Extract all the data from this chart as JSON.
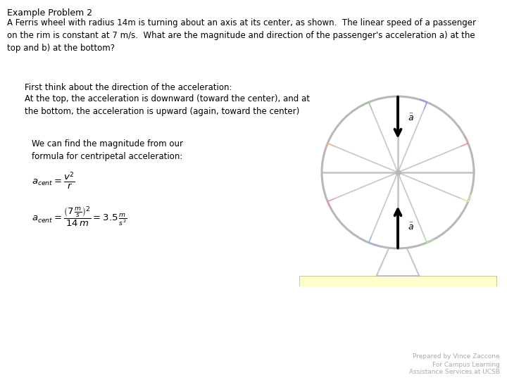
{
  "title": "Example Problem 2",
  "problem_text": "A Ferris wheel with radius 14m is turning about an axis at its center, as shown.  The linear speed of a passenger\non the rim is constant at 7 m/s.  What are the magnitude and direction of the passenger's acceleration a) at the\ntop and b) at the bottom?",
  "step1_text": "First think about the direction of the acceleration:",
  "step2_text": "At the top, the acceleration is downward (toward the center), and at\nthe bottom, the acceleration is upward (again, toward the center)",
  "step3_text": "We can find the magnitude from our\nformula for centripetal acceleration:",
  "footer1": "Prepared by Vince Zaccone",
  "footer2": "For Campus Learning\nAssistance Services at UCSB",
  "bg_color": "#ffffff",
  "wheel_color": "#b8b8b8",
  "spoke_color": "#b8b8b8",
  "arrow_color": "#000000",
  "ground_color": "#ffffcc",
  "num_spokes": 8
}
